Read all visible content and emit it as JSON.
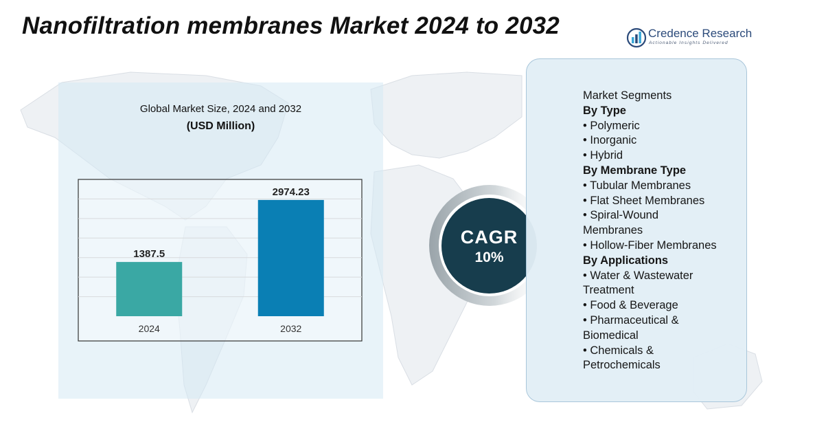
{
  "title": "Nanofiltration membranes Market 2024 to 2032",
  "logo": {
    "name": "Credence Research",
    "tagline": "Actionable Insights Delivered",
    "icon": "bar-chart-logo-icon",
    "colors": {
      "primary": "#2b4a7a",
      "accent": "#3aa8d8"
    }
  },
  "chart_panel": {
    "title": "Global Market Size, 2024 and 2032",
    "unit": "(USD Million)"
  },
  "chart_data": {
    "type": "bar",
    "title": "Global Market Size, 2024 and 2032",
    "ylabel": "(USD Million)",
    "categories": [
      "2024",
      "2032"
    ],
    "values": [
      1387.5,
      2974.23
    ],
    "value_labels": [
      "1387.5",
      "2974.23"
    ],
    "bar_colors": [
      "#3aa8a4",
      "#0a7fb4"
    ],
    "ylim": [
      0,
      3500
    ],
    "grid": true
  },
  "cagr": {
    "label": "CAGR",
    "value": "10%",
    "colors": {
      "circle": "#173d4d",
      "ring": "#bcc4c8"
    }
  },
  "segments": {
    "lines": [
      {
        "type": "text",
        "text": "Market Segments"
      },
      {
        "type": "header",
        "text": "By Type"
      },
      {
        "type": "item",
        "text": "•  Polymeric"
      },
      {
        "type": "item",
        "text": "•  Inorganic"
      },
      {
        "type": "item",
        "text": "•  Hybrid"
      },
      {
        "type": "header",
        "text": "By Membrane Type"
      },
      {
        "type": "item",
        "text": "•   Tubular Membranes"
      },
      {
        "type": "item",
        "text": "•  Flat Sheet Membranes"
      },
      {
        "type": "item",
        "text": "•  Spiral-Wound"
      },
      {
        "type": "item",
        "text": "Membranes"
      },
      {
        "type": "item",
        "text": "•  Hollow-Fiber Membranes"
      },
      {
        "type": "header",
        "text": "By Applications"
      },
      {
        "type": "item",
        "text": "•  Water & Wastewater"
      },
      {
        "type": "item",
        "text": "Treatment"
      },
      {
        "type": "item",
        "text": "•   Food & Beverage"
      },
      {
        "type": "item",
        "text": "•  Pharmaceutical &"
      },
      {
        "type": "item",
        "text": "Biomedical"
      },
      {
        "type": "item",
        "text": "•   Chemicals &"
      },
      {
        "type": "item",
        "text": "Petrochemicals"
      }
    ]
  }
}
